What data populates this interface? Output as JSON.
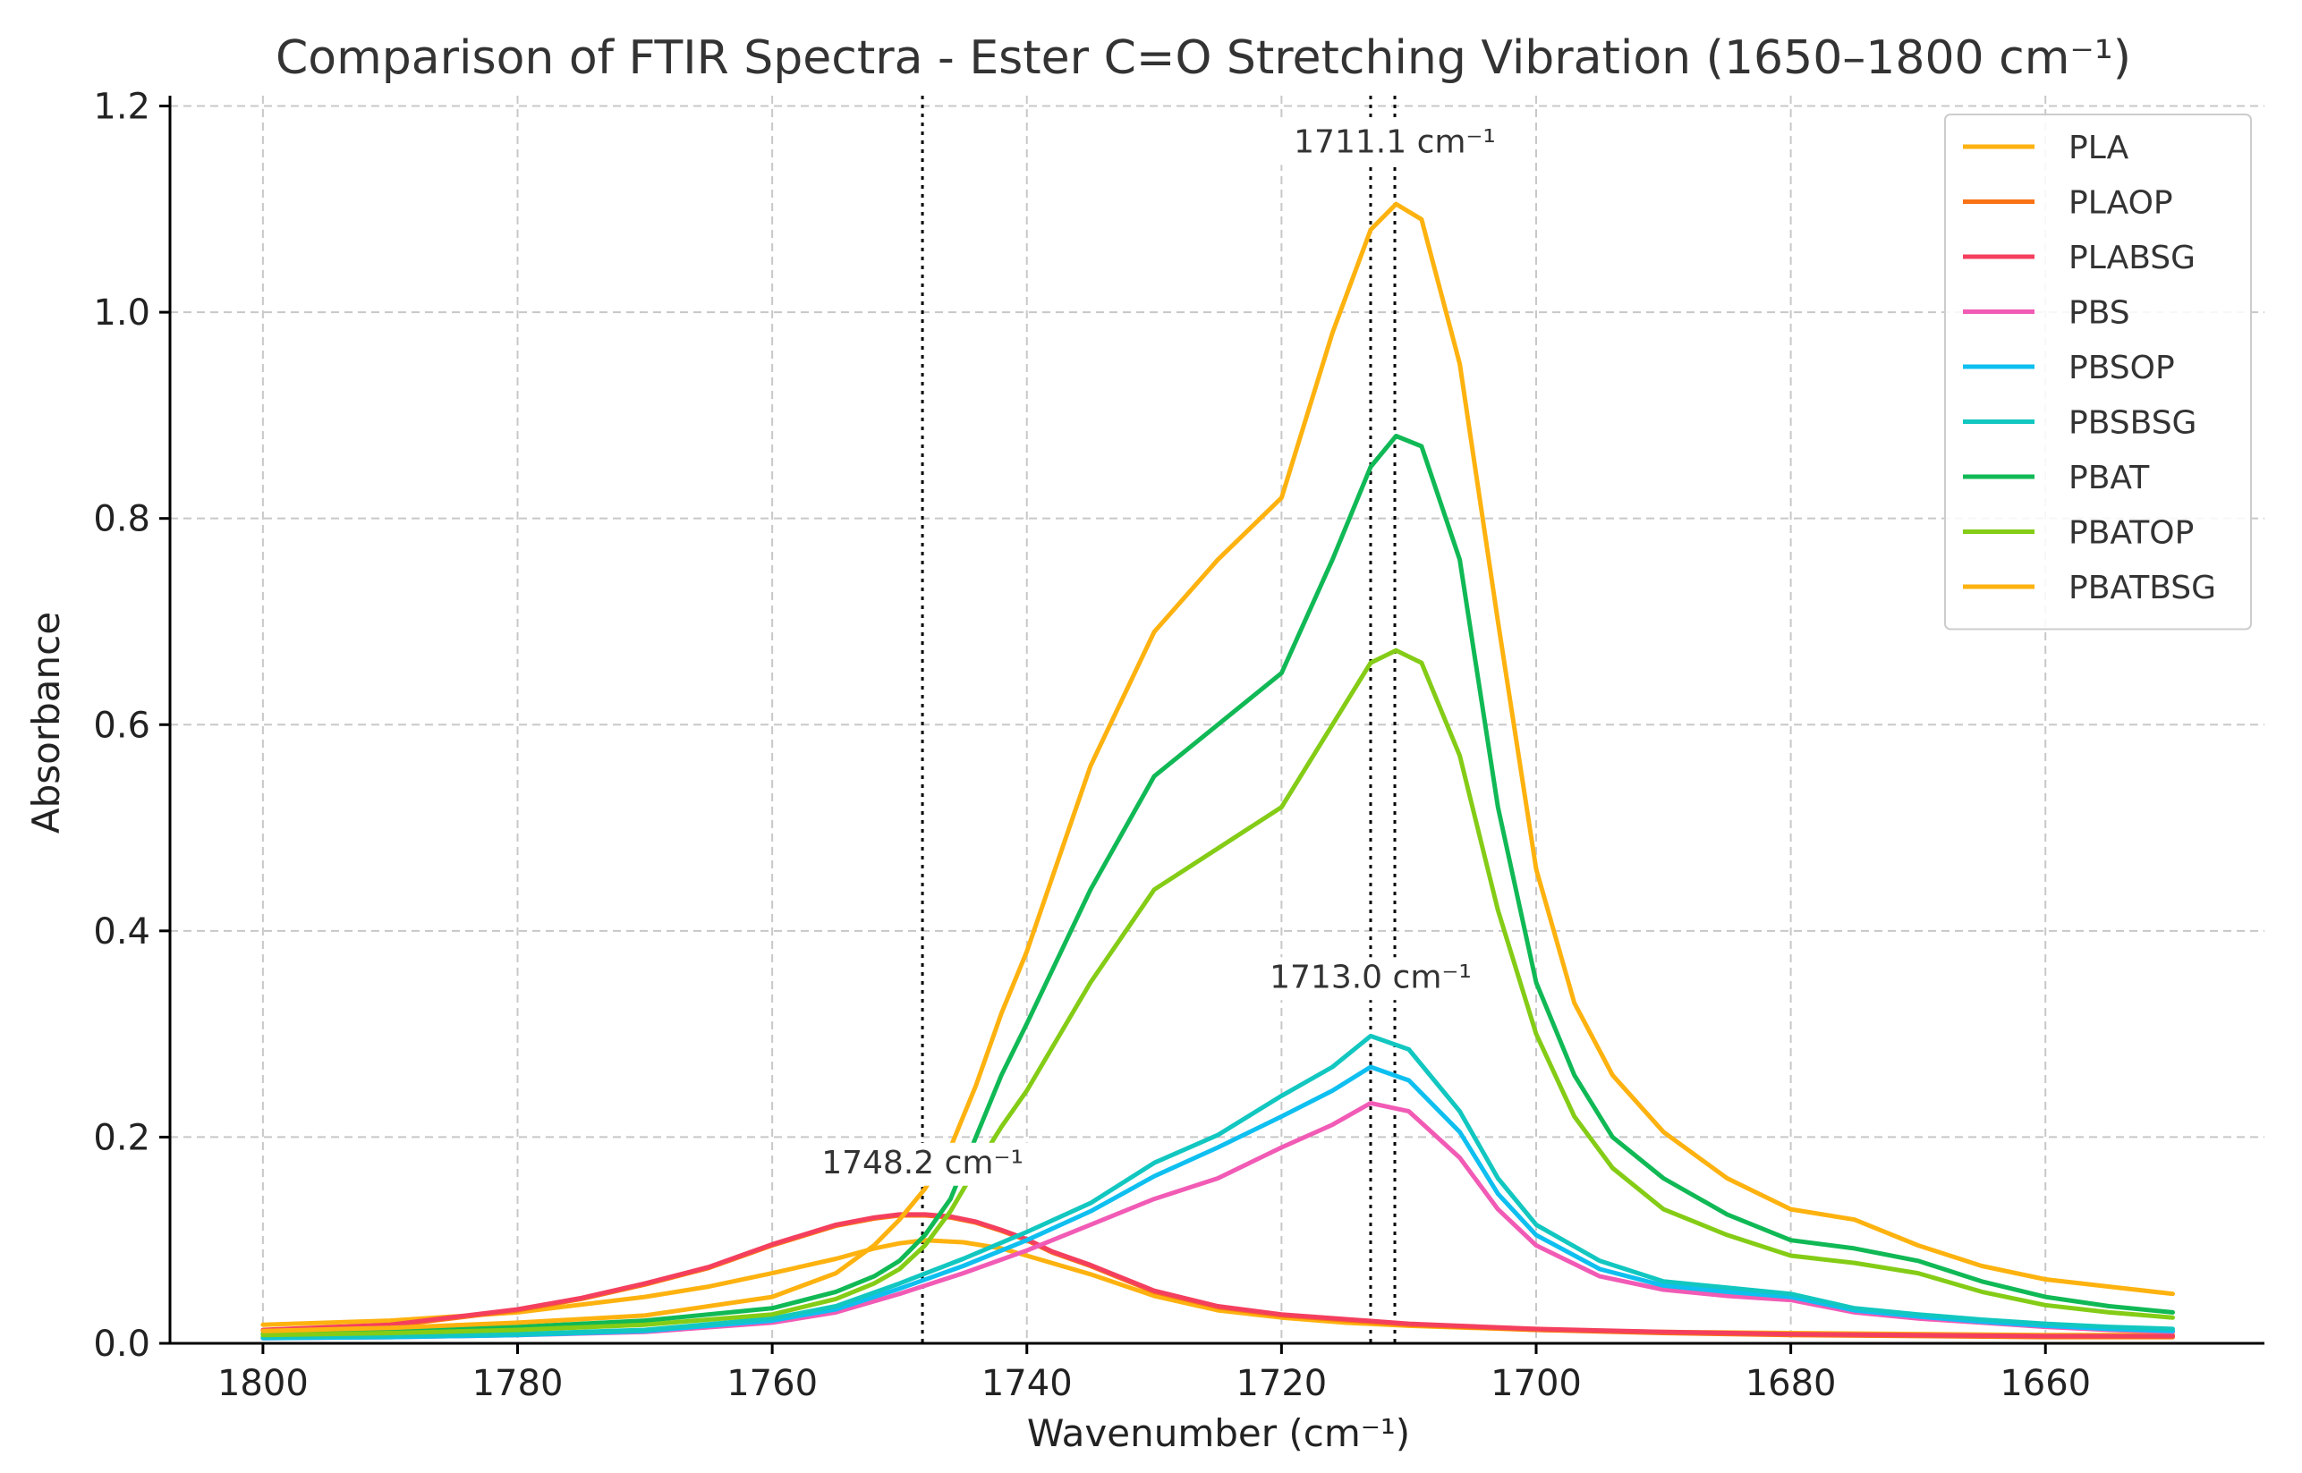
{
  "chart_data": {
    "type": "line",
    "title": "Comparison of FTIR Spectra - Ester C=O Stretching Vibration (1650–1800 cm⁻¹)",
    "xlabel": "Wavenumber (cm⁻¹)",
    "ylabel": "Absorbance",
    "xlim": [
      1807.3,
      1642.8
    ],
    "ylim": [
      0.0,
      1.21
    ],
    "xticks": [
      1800,
      1780,
      1760,
      1740,
      1720,
      1700,
      1680,
      1660
    ],
    "yticks": [
      0.0,
      0.2,
      0.4,
      0.6,
      0.8,
      1.0,
      1.2
    ],
    "ytick_labels": [
      "0.0",
      "0.2",
      "0.4",
      "0.6",
      "0.8",
      "1.0",
      "1.2"
    ],
    "grid": true,
    "legend_position": "top-right",
    "vlines": [
      1748.2,
      1713.0,
      1711.1
    ],
    "annotations": [
      {
        "text": "1711.1 cm⁻¹",
        "x": 1711.1,
        "y": 1.155
      },
      {
        "text": "1713.0 cm⁻¹",
        "x": 1713.0,
        "y": 0.345
      },
      {
        "text": "1748.2 cm⁻¹",
        "x": 1748.2,
        "y": 0.165
      }
    ],
    "series": [
      {
        "name": "PLA",
        "color": "#FDB20F",
        "x": [
          1800,
          1790,
          1780,
          1770,
          1765,
          1760,
          1755,
          1752,
          1750,
          1748,
          1745,
          1742,
          1740,
          1735,
          1730,
          1725,
          1720,
          1715,
          1710,
          1705,
          1700,
          1690,
          1680,
          1670,
          1660,
          1650
        ],
        "y": [
          0.018,
          0.022,
          0.03,
          0.045,
          0.055,
          0.068,
          0.082,
          0.092,
          0.097,
          0.1,
          0.098,
          0.092,
          0.085,
          0.067,
          0.046,
          0.032,
          0.025,
          0.02,
          0.017,
          0.015,
          0.013,
          0.011,
          0.01,
          0.009,
          0.008,
          0.008
        ]
      },
      {
        "name": "PLAOP",
        "color": "#F97316",
        "x": [
          1800,
          1790,
          1780,
          1775,
          1770,
          1765,
          1760,
          1755,
          1752,
          1750,
          1748,
          1746,
          1744,
          1742,
          1740,
          1738,
          1735,
          1730,
          1725,
          1720,
          1710,
          1700,
          1690,
          1680,
          1670,
          1660,
          1650
        ],
        "y": [
          0.012,
          0.017,
          0.032,
          0.043,
          0.057,
          0.073,
          0.095,
          0.114,
          0.121,
          0.124,
          0.124,
          0.122,
          0.117,
          0.109,
          0.1,
          0.088,
          0.075,
          0.05,
          0.035,
          0.027,
          0.018,
          0.013,
          0.01,
          0.008,
          0.007,
          0.006,
          0.006
        ]
      },
      {
        "name": "PLABSG",
        "color": "#F43F5E",
        "x": [
          1800,
          1790,
          1780,
          1775,
          1770,
          1765,
          1760,
          1755,
          1752,
          1750,
          1748,
          1746,
          1744,
          1742,
          1740,
          1738,
          1735,
          1730,
          1725,
          1720,
          1710,
          1700,
          1690,
          1680,
          1670,
          1660,
          1650
        ],
        "y": [
          0.013,
          0.018,
          0.033,
          0.044,
          0.058,
          0.074,
          0.096,
          0.115,
          0.122,
          0.125,
          0.125,
          0.123,
          0.118,
          0.11,
          0.101,
          0.089,
          0.076,
          0.051,
          0.036,
          0.028,
          0.019,
          0.014,
          0.011,
          0.009,
          0.008,
          0.007,
          0.007
        ]
      },
      {
        "name": "PBS",
        "color": "#F15BB5",
        "x": [
          1800,
          1790,
          1780,
          1770,
          1760,
          1755,
          1750,
          1745,
          1740,
          1735,
          1730,
          1725,
          1720,
          1716,
          1713,
          1710,
          1706,
          1703,
          1700,
          1695,
          1690,
          1685,
          1680,
          1675,
          1670,
          1665,
          1660,
          1655,
          1650
        ],
        "y": [
          0.005,
          0.006,
          0.008,
          0.011,
          0.02,
          0.03,
          0.048,
          0.068,
          0.09,
          0.115,
          0.14,
          0.16,
          0.19,
          0.212,
          0.233,
          0.225,
          0.18,
          0.13,
          0.095,
          0.065,
          0.052,
          0.046,
          0.042,
          0.03,
          0.024,
          0.02,
          0.016,
          0.013,
          0.011
        ]
      },
      {
        "name": "PBSOP",
        "color": "#0EBFF0",
        "x": [
          1800,
          1790,
          1780,
          1770,
          1760,
          1755,
          1750,
          1745,
          1740,
          1735,
          1730,
          1725,
          1720,
          1716,
          1713,
          1710,
          1706,
          1703,
          1700,
          1695,
          1690,
          1685,
          1680,
          1675,
          1670,
          1665,
          1660,
          1655,
          1650
        ],
        "y": [
          0.005,
          0.006,
          0.008,
          0.012,
          0.022,
          0.033,
          0.053,
          0.075,
          0.1,
          0.128,
          0.162,
          0.19,
          0.22,
          0.245,
          0.268,
          0.255,
          0.205,
          0.145,
          0.105,
          0.072,
          0.056,
          0.05,
          0.045,
          0.032,
          0.026,
          0.021,
          0.017,
          0.014,
          0.012
        ]
      },
      {
        "name": "PBSBSG",
        "color": "#12C7C0",
        "x": [
          1800,
          1790,
          1780,
          1770,
          1760,
          1755,
          1750,
          1745,
          1740,
          1735,
          1730,
          1725,
          1720,
          1716,
          1713,
          1710,
          1706,
          1703,
          1700,
          1695,
          1690,
          1685,
          1680,
          1675,
          1670,
          1665,
          1660,
          1655,
          1650
        ],
        "y": [
          0.006,
          0.007,
          0.009,
          0.013,
          0.024,
          0.036,
          0.058,
          0.082,
          0.108,
          0.136,
          0.175,
          0.202,
          0.24,
          0.268,
          0.298,
          0.285,
          0.225,
          0.16,
          0.115,
          0.08,
          0.06,
          0.054,
          0.048,
          0.034,
          0.028,
          0.023,
          0.019,
          0.016,
          0.014
        ]
      },
      {
        "name": "PBAT",
        "color": "#10B955",
        "x": [
          1800,
          1790,
          1780,
          1770,
          1760,
          1755,
          1752,
          1750,
          1748,
          1746,
          1744,
          1742,
          1740,
          1735,
          1730,
          1725,
          1720,
          1716,
          1713,
          1711,
          1709,
          1706,
          1703,
          1700,
          1697,
          1694,
          1690,
          1685,
          1680,
          1675,
          1670,
          1665,
          1660,
          1655,
          1650
        ],
        "y": [
          0.009,
          0.012,
          0.016,
          0.022,
          0.034,
          0.05,
          0.065,
          0.08,
          0.105,
          0.14,
          0.2,
          0.26,
          0.31,
          0.44,
          0.55,
          0.6,
          0.65,
          0.76,
          0.85,
          0.88,
          0.87,
          0.76,
          0.52,
          0.35,
          0.26,
          0.2,
          0.16,
          0.125,
          0.1,
          0.092,
          0.08,
          0.06,
          0.045,
          0.036,
          0.03
        ]
      },
      {
        "name": "PBATOP",
        "color": "#84CC16",
        "x": [
          1800,
          1790,
          1780,
          1770,
          1760,
          1755,
          1752,
          1750,
          1748,
          1746,
          1744,
          1742,
          1740,
          1735,
          1730,
          1725,
          1720,
          1716,
          1713,
          1711,
          1709,
          1706,
          1703,
          1700,
          1697,
          1694,
          1690,
          1685,
          1680,
          1675,
          1670,
          1665,
          1660,
          1655,
          1650
        ],
        "y": [
          0.008,
          0.01,
          0.013,
          0.018,
          0.028,
          0.043,
          0.058,
          0.072,
          0.095,
          0.128,
          0.17,
          0.21,
          0.245,
          0.35,
          0.44,
          0.48,
          0.52,
          0.6,
          0.66,
          0.672,
          0.66,
          0.57,
          0.42,
          0.3,
          0.22,
          0.17,
          0.13,
          0.105,
          0.085,
          0.078,
          0.068,
          0.05,
          0.037,
          0.03,
          0.025
        ]
      },
      {
        "name": "PBATBSG",
        "color": "#FDB20F",
        "x": [
          1800,
          1790,
          1780,
          1770,
          1760,
          1755,
          1752,
          1750,
          1748,
          1746,
          1744,
          1742,
          1740,
          1735,
          1730,
          1725,
          1720,
          1716,
          1713,
          1711,
          1709,
          1706,
          1703,
          1700,
          1697,
          1694,
          1690,
          1685,
          1680,
          1675,
          1670,
          1665,
          1660,
          1655,
          1650
        ],
        "y": [
          0.012,
          0.015,
          0.02,
          0.027,
          0.045,
          0.068,
          0.095,
          0.12,
          0.15,
          0.19,
          0.25,
          0.32,
          0.38,
          0.56,
          0.69,
          0.76,
          0.82,
          0.98,
          1.08,
          1.105,
          1.09,
          0.95,
          0.7,
          0.46,
          0.33,
          0.26,
          0.205,
          0.16,
          0.13,
          0.12,
          0.095,
          0.075,
          0.062,
          0.055,
          0.048
        ]
      }
    ]
  }
}
